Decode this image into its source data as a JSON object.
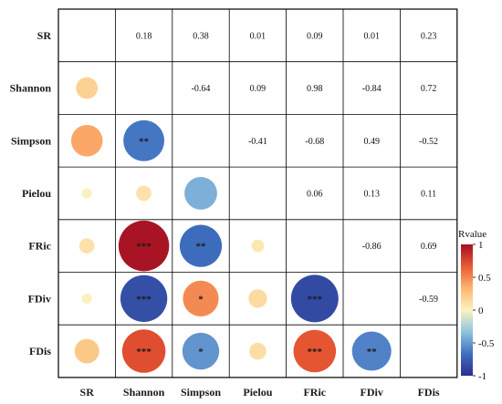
{
  "chart_data": {
    "type": "heatmap",
    "variables": [
      "SR",
      "Shannon",
      "Simpson",
      "Pielou",
      "FRic",
      "FDiv",
      "FDis"
    ],
    "upper_values": [
      [
        "",
        "0.18",
        "0.38",
        "0.01",
        "0.09",
        "0.01",
        "0.23"
      ],
      [
        "",
        "",
        "-0.64",
        "0.09",
        "0.98",
        "-0.84",
        "0.72"
      ],
      [
        "",
        "",
        "",
        "-0.41",
        "-0.68",
        "0.49",
        "-0.52"
      ],
      [
        "",
        "",
        "",
        "",
        "0.06",
        "0.13",
        "0.11"
      ],
      [
        "",
        "",
        "",
        "",
        "",
        "-0.86",
        "0.69"
      ],
      [
        "",
        "",
        "",
        "",
        "",
        "",
        "-0.59"
      ],
      [
        "",
        "",
        "",
        "",
        "",
        "",
        ""
      ]
    ],
    "lower_circles": [
      {
        "row": "Shannon",
        "col": "SR",
        "r": 0.18,
        "sig": ""
      },
      {
        "row": "Simpson",
        "col": "SR",
        "r": 0.38,
        "sig": ""
      },
      {
        "row": "Simpson",
        "col": "Shannon",
        "r": -0.64,
        "sig": "**"
      },
      {
        "row": "Pielou",
        "col": "SR",
        "r": 0.01,
        "sig": ""
      },
      {
        "row": "Pielou",
        "col": "Shannon",
        "r": 0.09,
        "sig": ""
      },
      {
        "row": "Pielou",
        "col": "Simpson",
        "r": -0.41,
        "sig": ""
      },
      {
        "row": "FRic",
        "col": "SR",
        "r": 0.09,
        "sig": ""
      },
      {
        "row": "FRic",
        "col": "Shannon",
        "r": 0.98,
        "sig": "***"
      },
      {
        "row": "FRic",
        "col": "Simpson",
        "r": -0.68,
        "sig": "**"
      },
      {
        "row": "FRic",
        "col": "Pielou",
        "r": 0.06,
        "sig": ""
      },
      {
        "row": "FDiv",
        "col": "SR",
        "r": 0.01,
        "sig": ""
      },
      {
        "row": "FDiv",
        "col": "Shannon",
        "r": -0.84,
        "sig": "***"
      },
      {
        "row": "FDiv",
        "col": "Simpson",
        "r": 0.49,
        "sig": "*"
      },
      {
        "row": "FDiv",
        "col": "Pielou",
        "r": 0.13,
        "sig": ""
      },
      {
        "row": "FDiv",
        "col": "FRic",
        "r": -0.86,
        "sig": "***"
      },
      {
        "row": "FDis",
        "col": "SR",
        "r": 0.23,
        "sig": ""
      },
      {
        "row": "FDis",
        "col": "Shannon",
        "r": 0.72,
        "sig": "***"
      },
      {
        "row": "FDis",
        "col": "Simpson",
        "r": -0.52,
        "sig": "*"
      },
      {
        "row": "FDis",
        "col": "Pielou",
        "r": 0.11,
        "sig": ""
      },
      {
        "row": "FDis",
        "col": "FRic",
        "r": 0.69,
        "sig": "***"
      },
      {
        "row": "FDis",
        "col": "FDiv",
        "r": -0.59,
        "sig": "**"
      }
    ],
    "colorbar": {
      "title": "Rvalue",
      "range": [
        -1,
        1
      ],
      "ticks": [
        "1",
        "0.5",
        "0",
        "-0.5",
        "-1"
      ],
      "colors": [
        "#2b2f8f",
        "#3f6fbf",
        "#8ec3e0",
        "#fbf3c0",
        "#fdb46f",
        "#ea5a33",
        "#a50f24"
      ]
    },
    "grid": true,
    "legend_position": "right"
  }
}
